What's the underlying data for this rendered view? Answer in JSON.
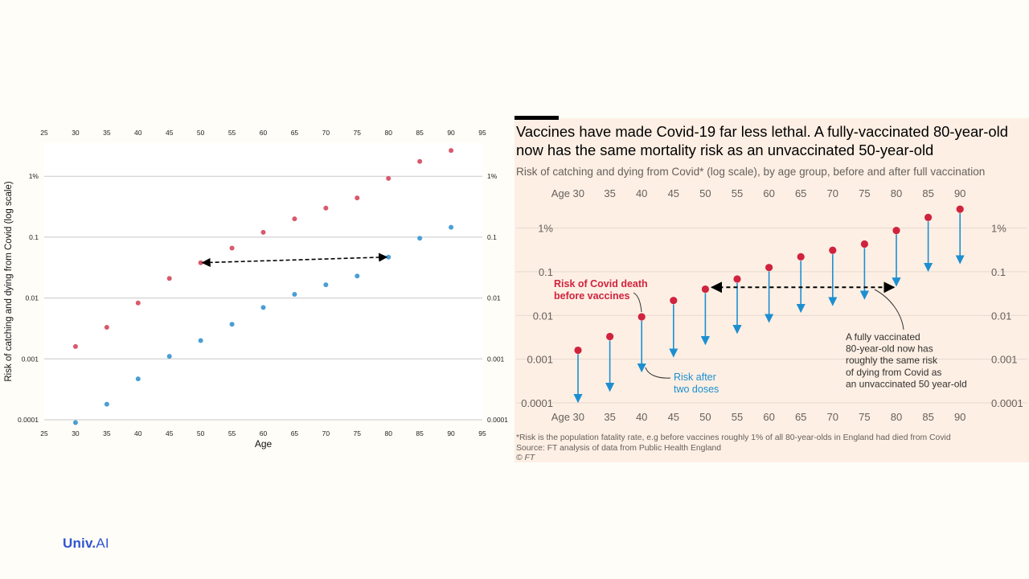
{
  "chart_data": [
    {
      "type": "scatter",
      "title": "",
      "xlabel": "Age",
      "ylabel": "Risk of catching and dying from Covid (log scale)",
      "x_ticks": [
        25,
        30,
        35,
        40,
        45,
        50,
        55,
        60,
        65,
        70,
        75,
        80,
        85,
        90,
        95
      ],
      "xlim": [
        25,
        95
      ],
      "y_scale": "log",
      "ylim": [
        0.0001,
        3.5
      ],
      "y_ticks": [
        {
          "value": 0.0001,
          "label": "0.0001"
        },
        {
          "value": 0.001,
          "label": "0.001"
        },
        {
          "value": 0.01,
          "label": "0.01"
        },
        {
          "value": 0.1,
          "label": "0.1"
        },
        {
          "value": 1,
          "label": "1%"
        }
      ],
      "grid": "horizontal",
      "colors": {
        "before": "#d9596b",
        "after": "#4a9fd4"
      },
      "series": [
        {
          "key": "before",
          "x": [
            30,
            35,
            40,
            45,
            50,
            55,
            60,
            65,
            70,
            75,
            80,
            85,
            90
          ],
          "y": [
            0.0016,
            0.0033,
            0.0083,
            0.021,
            0.038,
            0.066,
            0.12,
            0.2,
            0.3,
            0.44,
            0.92,
            1.75,
            2.65
          ]
        },
        {
          "key": "after",
          "x": [
            30,
            35,
            40,
            45,
            50,
            55,
            60,
            65,
            70,
            75,
            80,
            85,
            90
          ],
          "y": [
            9e-05,
            0.00018,
            0.00047,
            0.0011,
            0.002,
            0.0037,
            0.007,
            0.0115,
            0.0165,
            0.023,
            0.047,
            0.096,
            0.145
          ]
        }
      ],
      "arrow": {
        "x1": 50,
        "y1": 0.038,
        "x2": 80,
        "y2": 0.047,
        "style": "dashed double-headed"
      }
    },
    {
      "type": "scatter",
      "title": "Vaccines have made Covid-19 far less lethal. A fully-vaccinated 80-year-old now has the same mortality risk as an unvaccinated 50-year-old",
      "subtitle": "Risk of catching and dying from Covid* (log scale), by age group, before and after full vaccination",
      "x_prefix": "Age",
      "ages": [
        30,
        35,
        40,
        45,
        50,
        55,
        60,
        65,
        70,
        75,
        80,
        85,
        90
      ],
      "y_scale": "log",
      "ylim": [
        0.0001,
        3.5
      ],
      "y_ticks": [
        {
          "value": 0.0001,
          "label": "0.0001"
        },
        {
          "value": 0.001,
          "label": "0.001"
        },
        {
          "value": 0.01,
          "label": "0.01"
        },
        {
          "value": 0.1,
          "label": "0.1"
        },
        {
          "value": 1,
          "label": "1%"
        }
      ],
      "colors": {
        "before": "#d0233e",
        "after": "#1d8fd1",
        "background": "#fdefe4"
      },
      "series": [
        {
          "key": "before",
          "values": [
            0.0016,
            0.0033,
            0.0093,
            0.022,
            0.04,
            0.068,
            0.125,
            0.22,
            0.31,
            0.43,
            0.88,
            1.75,
            2.7
          ]
        },
        {
          "key": "after",
          "values": [
            0.0001,
            0.00018,
            0.0005,
            0.0011,
            0.0021,
            0.0038,
            0.0068,
            0.0115,
            0.0165,
            0.023,
            0.046,
            0.1,
            0.15
          ]
        }
      ],
      "arrow": {
        "from_age": 50,
        "to_age": 80,
        "value": 0.044,
        "style": "dashed double-headed"
      },
      "annotations": [
        {
          "key": "before",
          "lines": [
            "Risk of Covid death",
            "before vaccines"
          ]
        },
        {
          "key": "after",
          "lines": [
            "Risk after",
            "two doses"
          ]
        },
        {
          "key": "note",
          "lines": [
            "A fully vaccinated",
            "80-year-old now has",
            "roughly the same risk",
            "of dying from Covid as",
            "an unvaccinated 50 year-old"
          ]
        }
      ],
      "footnote": "*Risk is the population fatality rate, e.g before vaccines roughly 1% of all 80-year-olds in England had died from Covid",
      "source": "Source: FT analysis of data from Public Health England",
      "credit": "© FT"
    }
  ],
  "brand": {
    "name": "Univ",
    "sep": ".",
    "suffix": "AI"
  }
}
